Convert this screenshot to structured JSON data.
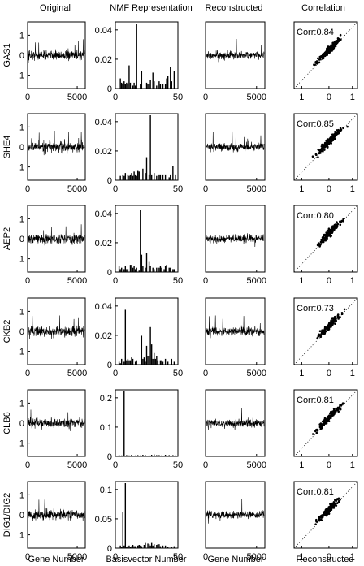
{
  "column_titles": [
    "Original",
    "NMF Representation",
    "Reconstructed",
    "Correlation"
  ],
  "bottom_labels": [
    "Gene Number",
    "Basisvector Number",
    "Gene Number",
    "Reconstructed"
  ],
  "rows": [
    {
      "gene": "GAS1",
      "corr_label": "Corr:0.84",
      "nmf_yticks": [
        "0.04",
        "0.02",
        "0"
      ]
    },
    {
      "gene": "SHE4",
      "corr_label": "Corr:0.85",
      "nmf_yticks": [
        "0.04",
        "0.02",
        "0"
      ]
    },
    {
      "gene": "AEP2",
      "corr_label": "Corr:0.80",
      "nmf_yticks": [
        "0.04",
        "0.02",
        "0"
      ]
    },
    {
      "gene": "CKB2",
      "corr_label": "Corr:0.73",
      "nmf_yticks": [
        "0.04",
        "0.02",
        "0"
      ]
    },
    {
      "gene": "CLB6",
      "corr_label": "Corr:0.81",
      "nmf_yticks": [
        "0.2",
        "0.1",
        "0"
      ]
    },
    {
      "gene": "DIG1/DIG2",
      "corr_label": "Corr:0.81",
      "nmf_yticks": [
        "0.1",
        "0.05",
        "0"
      ]
    }
  ],
  "signal_yticks": [
    "1",
    "0",
    "1"
  ],
  "signal_xticks": [
    "0",
    "5000"
  ],
  "nmf_xticks": [
    "0",
    "50"
  ],
  "corr_xticks": [
    "1",
    "0",
    "1"
  ],
  "chart_data": [
    {
      "type": "bar",
      "row": "GAS1",
      "xlim": [
        0,
        50
      ],
      "ylim": [
        0,
        0.045
      ],
      "x": [
        4,
        5,
        6,
        7,
        8,
        9,
        10,
        11,
        12,
        14,
        15,
        16,
        17,
        20,
        21,
        25,
        26,
        27,
        28,
        30,
        31,
        33,
        35,
        36,
        38,
        40,
        41,
        42,
        44,
        45,
        47
      ],
      "values": [
        0.007,
        0.004,
        0.003,
        0.005,
        0.003,
        0.004,
        0.003,
        0.016,
        0.004,
        0.002,
        0.004,
        0.002,
        0.045,
        0.003,
        0.012,
        0.004,
        0.003,
        0.003,
        0.006,
        0.011,
        0.005,
        0.002,
        0.005,
        0.003,
        0.003,
        0.003,
        0.007,
        0.009,
        0.015,
        0.005,
        0.012
      ]
    },
    {
      "type": "bar",
      "row": "SHE4",
      "xlim": [
        0,
        50
      ],
      "ylim": [
        0,
        0.045
      ],
      "x": [
        4,
        6,
        7,
        8,
        10,
        11,
        12,
        13,
        14,
        15,
        16,
        17,
        18,
        19,
        22,
        24,
        25,
        27,
        28,
        29,
        31,
        33,
        35,
        36,
        38,
        40,
        43,
        44,
        46,
        48
      ],
      "values": [
        0.003,
        0.004,
        0.003,
        0.005,
        0.004,
        0.003,
        0.004,
        0.005,
        0.003,
        0.006,
        0.004,
        0.003,
        0.007,
        0.006,
        0.008,
        0.005,
        0.016,
        0.004,
        0.045,
        0.004,
        0.005,
        0.003,
        0.004,
        0.004,
        0.004,
        0.004,
        0.002,
        0.004,
        0.01,
        0.004
      ]
    },
    {
      "type": "bar",
      "row": "AEP2",
      "xlim": [
        0,
        50
      ],
      "ylim": [
        0,
        0.045
      ],
      "x": [
        3,
        4,
        5,
        7,
        8,
        9,
        10,
        12,
        13,
        14,
        15,
        16,
        17,
        19,
        20,
        21,
        22,
        24,
        25,
        27,
        28,
        30,
        31,
        33,
        35,
        36,
        37,
        39,
        40,
        41,
        43,
        44,
        46,
        47
      ],
      "values": [
        0.004,
        0.002,
        0.003,
        0.002,
        0.004,
        0.002,
        0.002,
        0.005,
        0.005,
        0.003,
        0.004,
        0.002,
        0.003,
        0.001,
        0.043,
        0.012,
        0.004,
        0.003,
        0.013,
        0.007,
        0.004,
        0.003,
        0.002,
        0.003,
        0.003,
        0.004,
        0.003,
        0.002,
        0.004,
        0.005,
        0.003,
        0.003,
        0.002,
        0.002
      ]
    },
    {
      "type": "bar",
      "row": "CKB2",
      "xlim": [
        0,
        50
      ],
      "ylim": [
        0,
        0.045
      ],
      "x": [
        3,
        4,
        5,
        7,
        8,
        9,
        10,
        11,
        12,
        13,
        14,
        16,
        17,
        21,
        22,
        23,
        24,
        25,
        26,
        27,
        28,
        29,
        30,
        31,
        32,
        33,
        34,
        36,
        37,
        38,
        40,
        42,
        45,
        47
      ],
      "values": [
        0.002,
        0.001,
        0.004,
        0.002,
        0.038,
        0.003,
        0.004,
        0.003,
        0.003,
        0.005,
        0.004,
        0.002,
        0.003,
        0.02,
        0.004,
        0.005,
        0.002,
        0.013,
        0.006,
        0.006,
        0.026,
        0.014,
        0.004,
        0.008,
        0.004,
        0.006,
        0.003,
        0.003,
        0.003,
        0.002,
        0.004,
        0.002,
        0.004,
        0.002
      ]
    },
    {
      "type": "bar",
      "row": "CLB6",
      "xlim": [
        0,
        50
      ],
      "ylim": [
        0,
        0.2
      ],
      "x": [
        3,
        5,
        7,
        9,
        11,
        13,
        16,
        18,
        20,
        22,
        24,
        27,
        29,
        31,
        33,
        35,
        37,
        40,
        43,
        46,
        48
      ],
      "values": [
        0.004,
        0.003,
        0.2,
        0.004,
        0.003,
        0.005,
        0.003,
        0.004,
        0.003,
        0.005,
        0.004,
        0.003,
        0.005,
        0.006,
        0.004,
        0.004,
        0.003,
        0.005,
        0.004,
        0.004,
        0.003
      ]
    },
    {
      "type": "bar",
      "row": "DIG1/DIG2",
      "xlim": [
        0,
        50
      ],
      "ylim": [
        0,
        0.1
      ],
      "x": [
        4,
        5,
        6,
        7,
        8,
        9,
        10,
        11,
        12,
        13,
        14,
        15,
        16,
        18,
        19,
        20,
        21,
        23,
        24,
        26,
        27,
        28,
        29,
        30,
        31,
        33,
        34,
        35,
        36,
        38,
        40,
        42,
        45,
        47
      ],
      "values": [
        0.004,
        0.002,
        0.055,
        0.004,
        0.1,
        0.002,
        0.003,
        0.004,
        0.002,
        0.003,
        0.005,
        0.003,
        0.003,
        0.004,
        0.005,
        0.004,
        0.003,
        0.005,
        0.008,
        0.007,
        0.006,
        0.004,
        0.008,
        0.004,
        0.006,
        0.005,
        0.006,
        0.006,
        0.003,
        0.004,
        0.004,
        0.002,
        0.002,
        0.003
      ]
    }
  ]
}
